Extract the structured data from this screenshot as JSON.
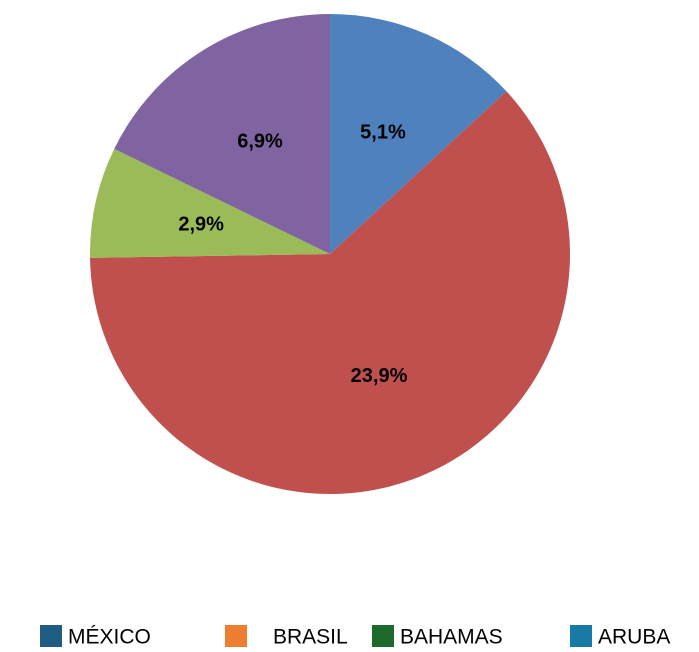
{
  "chart_data": {
    "type": "pie",
    "categories": [
      "MÉXICO",
      "BRASIL",
      "BAHAMAS",
      "ARUBA"
    ],
    "values": [
      5.1,
      23.9,
      2.9,
      6.9
    ],
    "value_labels": [
      "5,1%",
      "23,9%",
      "2,9%",
      "6,9%"
    ],
    "colors": [
      "#4f81bd",
      "#c0504d",
      "#9bbb59",
      "#8064a2"
    ],
    "legend_colors": [
      "#1f5d85",
      "#ed7d31",
      "#1e6a2c",
      "#1a7aa6"
    ]
  }
}
